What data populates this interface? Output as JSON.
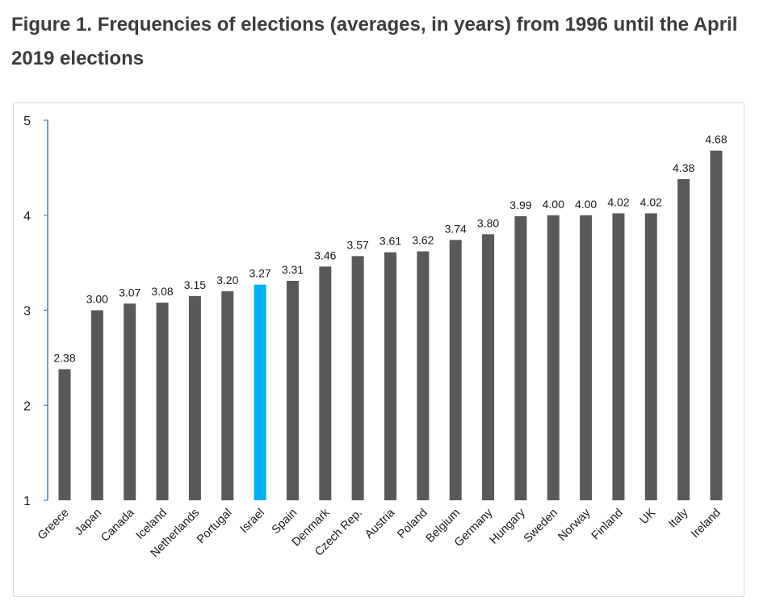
{
  "page": {
    "title": "Figure 1. Frequencies of elections (averages, in years) from 1996 until the April 2019 elections"
  },
  "colors": {
    "bar": "#595959",
    "highlight": "#00B0F0",
    "axis": "#4a7ebb",
    "title": "#3c3c3c"
  },
  "chart_data": {
    "type": "bar",
    "title": "Figure 1. Frequencies of elections (averages, in years) from 1996 until the April 2019 elections",
    "xlabel": "",
    "ylabel": "",
    "ylim": [
      1,
      5
    ],
    "yticks": [
      1,
      2,
      3,
      4,
      5
    ],
    "grid": false,
    "highlight_category": "Israel",
    "categories": [
      "Greece",
      "Japan",
      "Canada",
      "Iceland",
      "Netherlands",
      "Portugal",
      "Israel",
      "Spain",
      "Denmark",
      "Czech Rep.",
      "Austria",
      "Poland",
      "Belgium",
      "Germany",
      "Hungary",
      "Sweden",
      "Norway",
      "Finland",
      "UK",
      "Italy",
      "Ireland"
    ],
    "values": [
      2.38,
      3.0,
      3.07,
      3.08,
      3.15,
      3.2,
      3.27,
      3.31,
      3.46,
      3.57,
      3.61,
      3.62,
      3.74,
      3.8,
      3.99,
      4.0,
      4.0,
      4.02,
      4.02,
      4.38,
      4.68
    ],
    "value_labels": [
      "2.38",
      "3.00",
      "3.07",
      "3.08",
      "3.15",
      "3.20",
      "3.27",
      "3.31",
      "3.46",
      "3.57",
      "3.61",
      "3.62",
      "3.74",
      "3.80",
      "3.99",
      "4.00",
      "4.00",
      "4.02",
      "4.02",
      "4.38",
      "4.68"
    ]
  }
}
